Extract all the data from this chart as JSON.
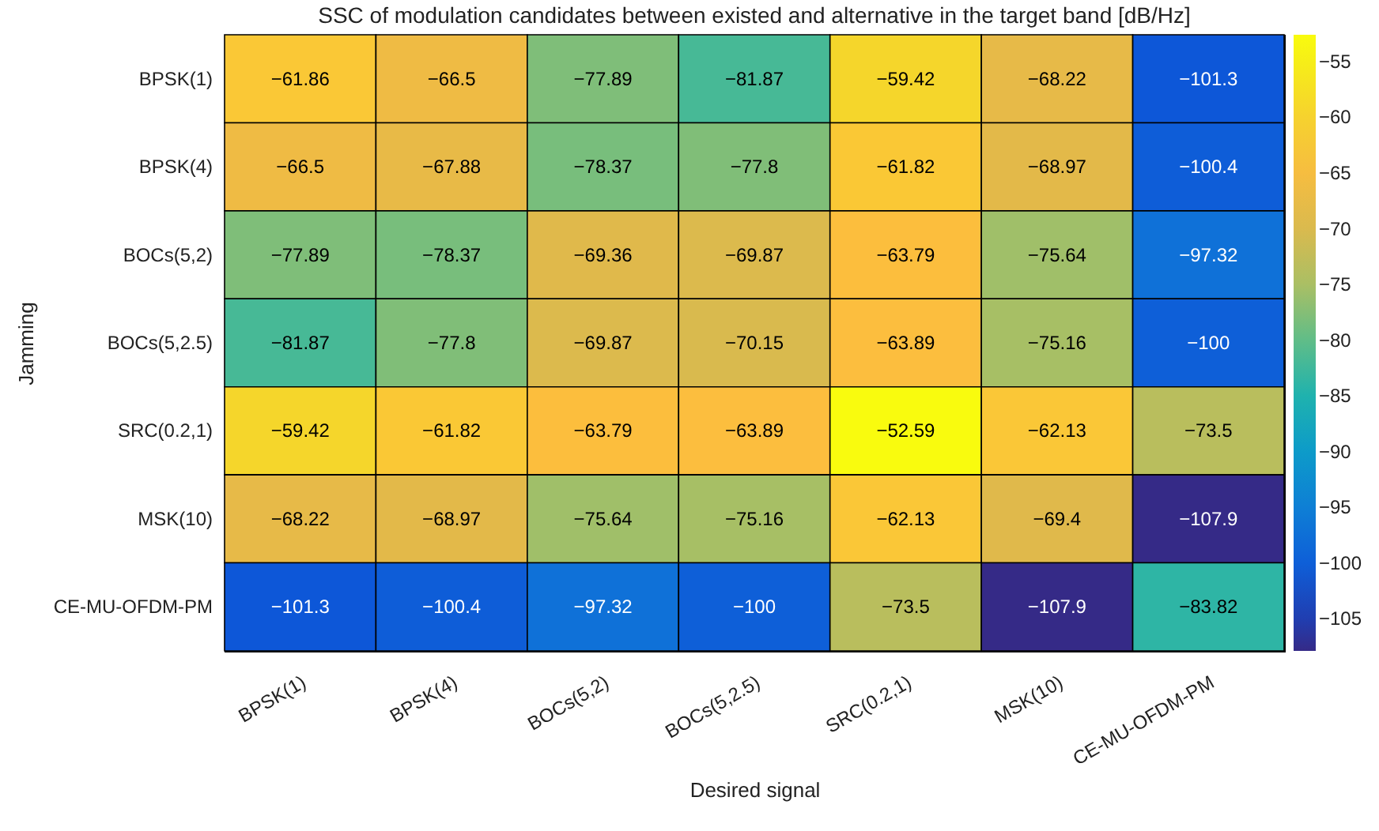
{
  "chart_data": {
    "type": "heatmap",
    "title": "SSC of modulation candidates between existed and alternative in the target band [dB/Hz]",
    "xlabel": "Desired signal",
    "ylabel": "Jamming",
    "categories": [
      "BPSK(1)",
      "BPSK(4)",
      "BOCs(5,2)",
      "BOCs(5,2.5)",
      "SRC(0.2,1)",
      "MSK(10)",
      "CE-MU-OFDM-PM"
    ],
    "y_categories": [
      "BPSK(1)",
      "BPSK(4)",
      "BOCs(5,2)",
      "BOCs(5,2.5)",
      "SRC(0.2,1)",
      "MSK(10)",
      "CE-MU-OFDM-PM"
    ],
    "cells": [
      [
        -61.86,
        -66.5,
        -77.89,
        -81.87,
        -59.42,
        -68.22,
        -101.3
      ],
      [
        -66.5,
        -67.88,
        -78.37,
        -77.8,
        -61.82,
        -68.97,
        -100.4
      ],
      [
        -77.89,
        -78.37,
        -69.36,
        -69.87,
        -63.79,
        -75.64,
        -97.32
      ],
      [
        -81.87,
        -77.8,
        -69.87,
        -70.15,
        -63.89,
        -75.16,
        -100
      ],
      [
        -59.42,
        -61.82,
        -63.79,
        -63.89,
        -52.59,
        -62.13,
        -73.5
      ],
      [
        -68.22,
        -68.97,
        -75.64,
        -75.16,
        -62.13,
        -69.4,
        -107.9
      ],
      [
        -101.3,
        -100.4,
        -97.32,
        -100,
        -73.5,
        -107.9,
        -83.82
      ]
    ],
    "data_labels": true,
    "clim": [
      -107.9,
      -52.59
    ],
    "cticks": [
      -105,
      -100,
      -95,
      -90,
      -85,
      -80,
      -75,
      -70,
      -65,
      -60,
      -55
    ]
  }
}
